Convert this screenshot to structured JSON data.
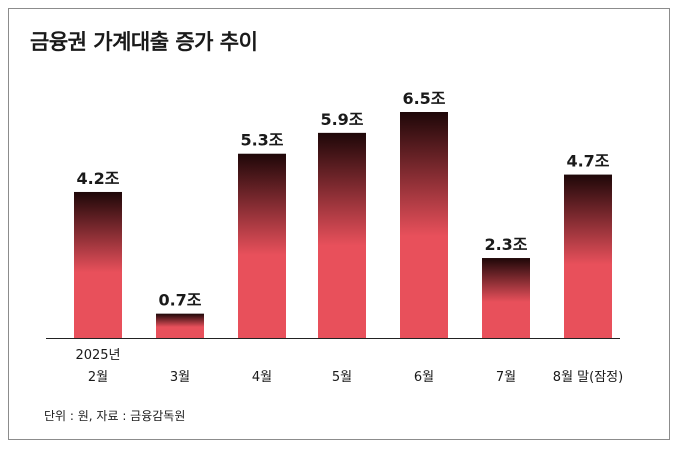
{
  "title": "금융권 가계대출 증가 추이",
  "source_note": "단위 : 원, 자료 : 금융감독원",
  "colors": {
    "bar_top": "#1e0708",
    "bar_bottom": "#e8505b",
    "axis": "#222222"
  },
  "chart_data": {
    "type": "bar",
    "categories": [
      [
        "2025년",
        "2월"
      ],
      [
        "3월"
      ],
      [
        "4월"
      ],
      [
        "5월"
      ],
      [
        "6월"
      ],
      [
        "7월"
      ],
      [
        "8월 말(잠정)"
      ]
    ],
    "values": [
      4.2,
      0.7,
      5.3,
      5.9,
      6.5,
      2.3,
      4.7
    ],
    "data_labels": [
      "4.2조",
      "0.7조",
      "5.3조",
      "5.9조",
      "6.5조",
      "2.3조",
      "4.7조"
    ],
    "title": "금융권 가계대출 증가 추이",
    "xlabel": "",
    "ylabel": "",
    "ylim": [
      0,
      6.5
    ],
    "grid": false,
    "legend": "none"
  }
}
